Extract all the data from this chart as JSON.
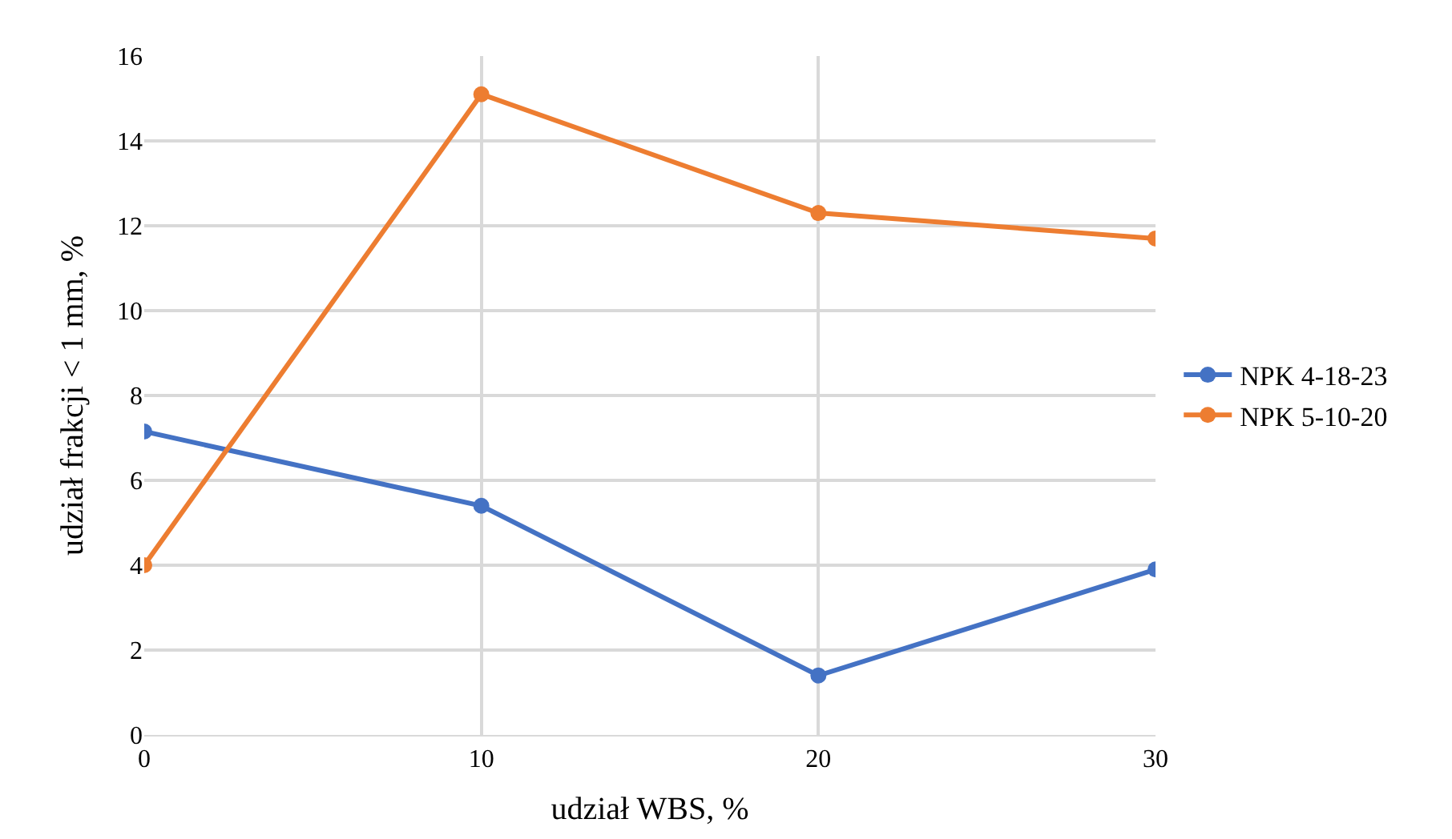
{
  "chart_data": {
    "type": "line",
    "xlabel": "udział WBS, %",
    "ylabel": "udział frakcji < 1 mm, %",
    "x": [
      0,
      10,
      20,
      30
    ],
    "series": [
      {
        "name": "NPK 4-18-23",
        "color": "#4472c4",
        "values": [
          7.15,
          5.4,
          1.4,
          3.9
        ]
      },
      {
        "name": "NPK 5-10-20",
        "color": "#ed7d31",
        "values": [
          4.0,
          15.1,
          12.3,
          11.7
        ]
      }
    ],
    "xlim": [
      0,
      30
    ],
    "xticks": [
      0,
      10,
      20,
      30
    ],
    "ylim": [
      0,
      16
    ],
    "yticks": [
      0,
      2,
      4,
      6,
      8,
      10,
      12,
      14,
      16
    ],
    "grid": true,
    "legend": "right",
    "marker": "circle",
    "line_style": "solid"
  }
}
